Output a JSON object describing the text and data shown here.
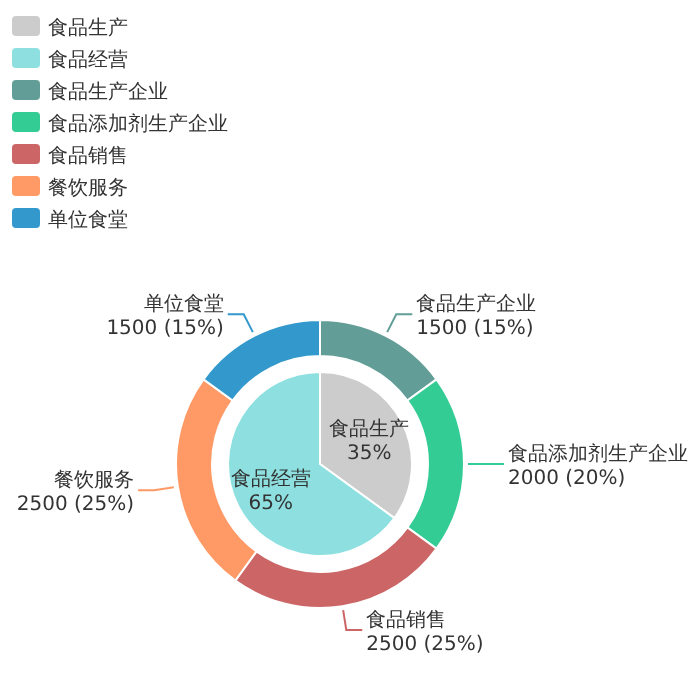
{
  "chart_data": [
    {
      "type": "pie",
      "categories": [
        "食品生产",
        "食品经营"
      ],
      "values": [
        35,
        65
      ],
      "colors": [
        "#cccccc",
        "#8ee0e0"
      ],
      "value_labels": [
        "35%",
        "65%"
      ],
      "legend": "top left"
    },
    {
      "type": "donut",
      "categories": [
        "食品生产企业",
        "食品添加剂生产企业",
        "食品销售",
        "餐饮服务",
        "单位食堂"
      ],
      "values": [
        1500,
        2000,
        2500,
        2500,
        1500
      ],
      "colors": [
        "#629e97",
        "#33cc94",
        "#cc6666",
        "#ff9966",
        "#3399cc"
      ],
      "value_labels": [
        "1500 (15%)",
        "2000 (20%)",
        "2500 (25%)",
        "2500 (25%)",
        "1500 (15%)"
      ],
      "legend": "top left"
    }
  ]
}
